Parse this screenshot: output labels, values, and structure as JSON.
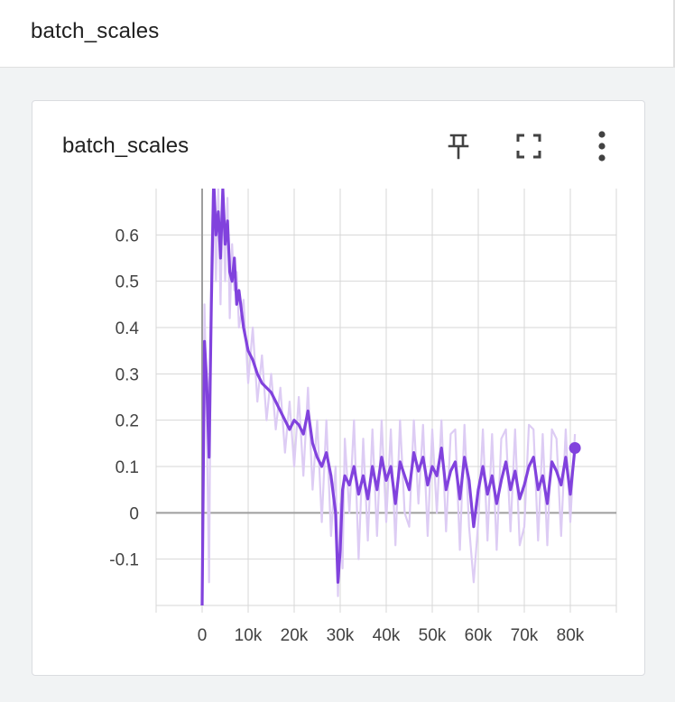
{
  "section": {
    "title": "batch_scales"
  },
  "card": {
    "title": "batch_scales",
    "icons": {
      "pin": "pin-icon",
      "fullscreen": "fullscreen-icon",
      "more": "more-vert-icon"
    }
  },
  "colors": {
    "series": "#8142dd",
    "series_raw": "#ddccf4",
    "grid": "#d7d7d7",
    "axis": "#9e9e9e"
  },
  "chart_data": {
    "type": "line",
    "title": "batch_scales",
    "xlabel": "",
    "ylabel": "",
    "xlim": [
      -10000,
      90000
    ],
    "ylim": [
      -0.2,
      0.7
    ],
    "x_ticks": [
      0,
      10000,
      20000,
      30000,
      40000,
      50000,
      60000,
      70000,
      80000
    ],
    "x_tick_labels": [
      "0",
      "10k",
      "20k",
      "30k",
      "40k",
      "50k",
      "60k",
      "70k",
      "80k"
    ],
    "y_ticks": [
      -0.1,
      0,
      0.1,
      0.2,
      0.3,
      0.4,
      0.5,
      0.6
    ],
    "y_tick_labels": [
      "-0.1",
      "0",
      "0.1",
      "0.2",
      "0.3",
      "0.4",
      "0.5",
      "0.6"
    ],
    "grid": true,
    "series": [
      {
        "smoothed": true,
        "x": [
          0,
          500,
          1000,
          1500,
          2000,
          2500,
          3000,
          3500,
          4000,
          4500,
          5000,
          5500,
          6000,
          6500,
          7000,
          7500,
          8000,
          9000,
          10000,
          11000,
          12000,
          13000,
          14000,
          15000,
          16000,
          17000,
          18000,
          19000,
          20000,
          21000,
          22000,
          23000,
          24000,
          25000,
          26000,
          27000,
          28000,
          29000,
          29500,
          30000,
          30500,
          31000,
          32000,
          33000,
          34000,
          35000,
          36000,
          37000,
          38000,
          39000,
          40000,
          41000,
          42000,
          43000,
          44000,
          45000,
          46000,
          47000,
          48000,
          49000,
          50000,
          51000,
          52000,
          53000,
          54000,
          55000,
          56000,
          57000,
          58000,
          59000,
          60000,
          61000,
          62000,
          63000,
          64000,
          65000,
          66000,
          67000,
          68000,
          69000,
          70000,
          71000,
          72000,
          73000,
          74000,
          75000,
          76000,
          77000,
          78000,
          79000,
          80000,
          81000
        ],
        "y": [
          -0.2,
          0.37,
          0.28,
          0.12,
          0.45,
          0.72,
          0.6,
          0.65,
          0.55,
          0.7,
          0.58,
          0.63,
          0.52,
          0.5,
          0.55,
          0.45,
          0.48,
          0.4,
          0.35,
          0.33,
          0.3,
          0.28,
          0.27,
          0.26,
          0.24,
          0.22,
          0.2,
          0.18,
          0.2,
          0.19,
          0.17,
          0.22,
          0.15,
          0.12,
          0.1,
          0.13,
          0.08,
          0.0,
          -0.15,
          -0.08,
          0.05,
          0.08,
          0.06,
          0.1,
          0.04,
          0.08,
          0.03,
          0.1,
          0.05,
          0.12,
          0.07,
          0.1,
          0.02,
          0.11,
          0.08,
          0.05,
          0.13,
          0.09,
          0.12,
          0.06,
          0.1,
          0.08,
          0.14,
          0.05,
          0.09,
          0.11,
          0.03,
          0.12,
          0.07,
          -0.03,
          0.05,
          0.1,
          0.04,
          0.08,
          0.02,
          0.07,
          0.11,
          0.05,
          0.09,
          0.03,
          0.06,
          0.1,
          0.12,
          0.05,
          0.08,
          0.02,
          0.11,
          0.09,
          0.06,
          0.12,
          0.04,
          0.14
        ]
      },
      {
        "smoothed": false,
        "x": [
          0,
          500,
          1000,
          1500,
          2000,
          2500,
          3000,
          3500,
          4000,
          4500,
          5000,
          5500,
          6000,
          6500,
          7000,
          7500,
          8000,
          9000,
          10000,
          11000,
          12000,
          13000,
          14000,
          15000,
          16000,
          17000,
          18000,
          19000,
          20000,
          21000,
          22000,
          23000,
          24000,
          25000,
          26000,
          27000,
          28000,
          29000,
          29500,
          30000,
          30500,
          31000,
          32000,
          33000,
          34000,
          35000,
          36000,
          37000,
          38000,
          39000,
          40000,
          41000,
          42000,
          43000,
          44000,
          45000,
          46000,
          47000,
          48000,
          49000,
          50000,
          51000,
          52000,
          53000,
          54000,
          55000,
          56000,
          57000,
          58000,
          59000,
          60000,
          61000,
          62000,
          63000,
          64000,
          65000,
          66000,
          67000,
          68000,
          69000,
          70000,
          71000,
          72000,
          73000,
          74000,
          75000,
          76000,
          77000,
          78000,
          79000,
          80000,
          81000
        ],
        "y": [
          -0.2,
          0.45,
          0.2,
          -0.15,
          0.55,
          0.75,
          0.5,
          0.7,
          0.45,
          0.72,
          0.5,
          0.68,
          0.42,
          0.58,
          0.48,
          0.52,
          0.4,
          0.46,
          0.28,
          0.4,
          0.24,
          0.34,
          0.2,
          0.3,
          0.18,
          0.27,
          0.13,
          0.24,
          0.1,
          0.25,
          0.08,
          0.27,
          0.05,
          0.2,
          -0.02,
          0.2,
          -0.05,
          0.1,
          -0.18,
          0.02,
          -0.12,
          0.16,
          0.0,
          0.2,
          -0.1,
          0.16,
          -0.06,
          0.18,
          -0.05,
          0.2,
          -0.02,
          0.18,
          -0.07,
          0.2,
          0.0,
          -0.03,
          0.2,
          0.02,
          0.19,
          -0.05,
          0.18,
          0.0,
          0.2,
          -0.04,
          0.17,
          0.18,
          -0.08,
          0.19,
          -0.03,
          -0.15,
          -0.02,
          0.18,
          -0.06,
          0.17,
          -0.08,
          0.16,
          0.18,
          -0.04,
          0.18,
          -0.07,
          -0.03,
          0.19,
          0.18,
          -0.06,
          0.17,
          -0.07,
          0.18,
          0.16,
          -0.05,
          0.18,
          -0.02,
          0.17
        ]
      }
    ]
  }
}
